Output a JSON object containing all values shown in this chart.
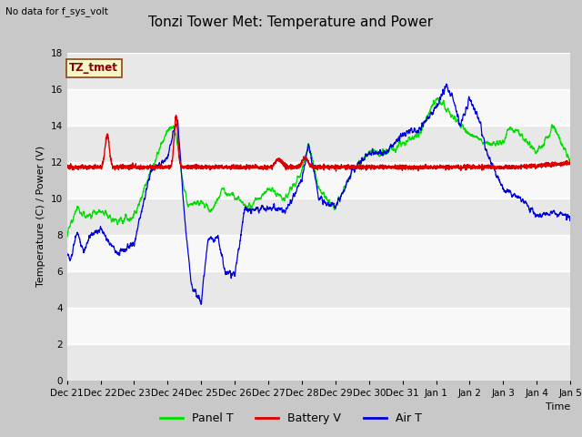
{
  "title": "Tonzi Tower Met: Temperature and Power",
  "subtitle": "No data for f_sys_volt",
  "ylabel": "Temperature (C) / Power (V)",
  "xlabel": "Time",
  "legend_label": "TZ_tmet",
  "ylim": [
    0,
    18
  ],
  "yticks": [
    0,
    2,
    4,
    6,
    8,
    10,
    12,
    14,
    16,
    18
  ],
  "x_tick_labels": [
    "Dec 21",
    "Dec 22",
    "Dec 23",
    "Dec 24",
    "Dec 25",
    "Dec 26",
    "Dec 27",
    "Dec 28",
    "Dec 29",
    "Dec 30",
    "Dec 31",
    "Jan 1",
    "Jan 2",
    "Jan 3",
    "Jan 4",
    "Jan 5"
  ],
  "bg_color": "#c8c8c8",
  "plot_bg_color": "#ffffff",
  "band_colors": [
    "#e8e8e8",
    "#f8f8f8"
  ],
  "line_colors": {
    "panel": "#00dd00",
    "battery": "#dd0000",
    "air": "#0000dd"
  },
  "legend_entries": [
    "Panel T",
    "Battery V",
    "Air T"
  ],
  "legend_colors": [
    "#00dd00",
    "#dd0000",
    "#0000dd"
  ],
  "title_fontsize": 11,
  "label_fontsize": 8,
  "tick_fontsize": 7.5
}
